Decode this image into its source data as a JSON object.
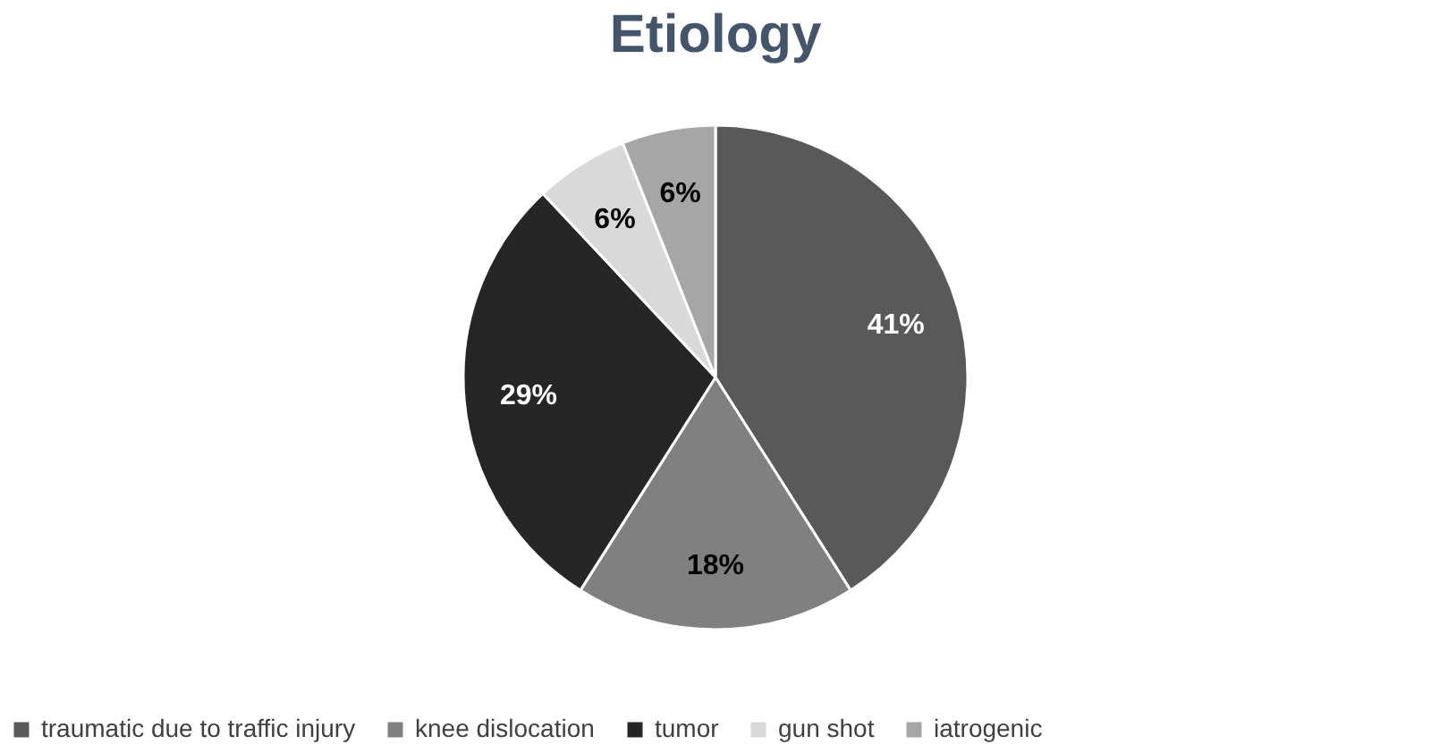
{
  "chart_data": {
    "type": "pie",
    "title": "Etiology",
    "categories": [
      "traumatic due to traffic injury",
      "knee dislocation",
      "tumor",
      "gun shot",
      "iatrogenic"
    ],
    "values": [
      41,
      18,
      29,
      6,
      6
    ],
    "colors": [
      "#595959",
      "#808080",
      "#262626",
      "#d9d9d9",
      "#a6a6a6"
    ],
    "value_labels": [
      "41%",
      "18%",
      "29%",
      "6%",
      "6%"
    ],
    "legend": "bottom"
  }
}
